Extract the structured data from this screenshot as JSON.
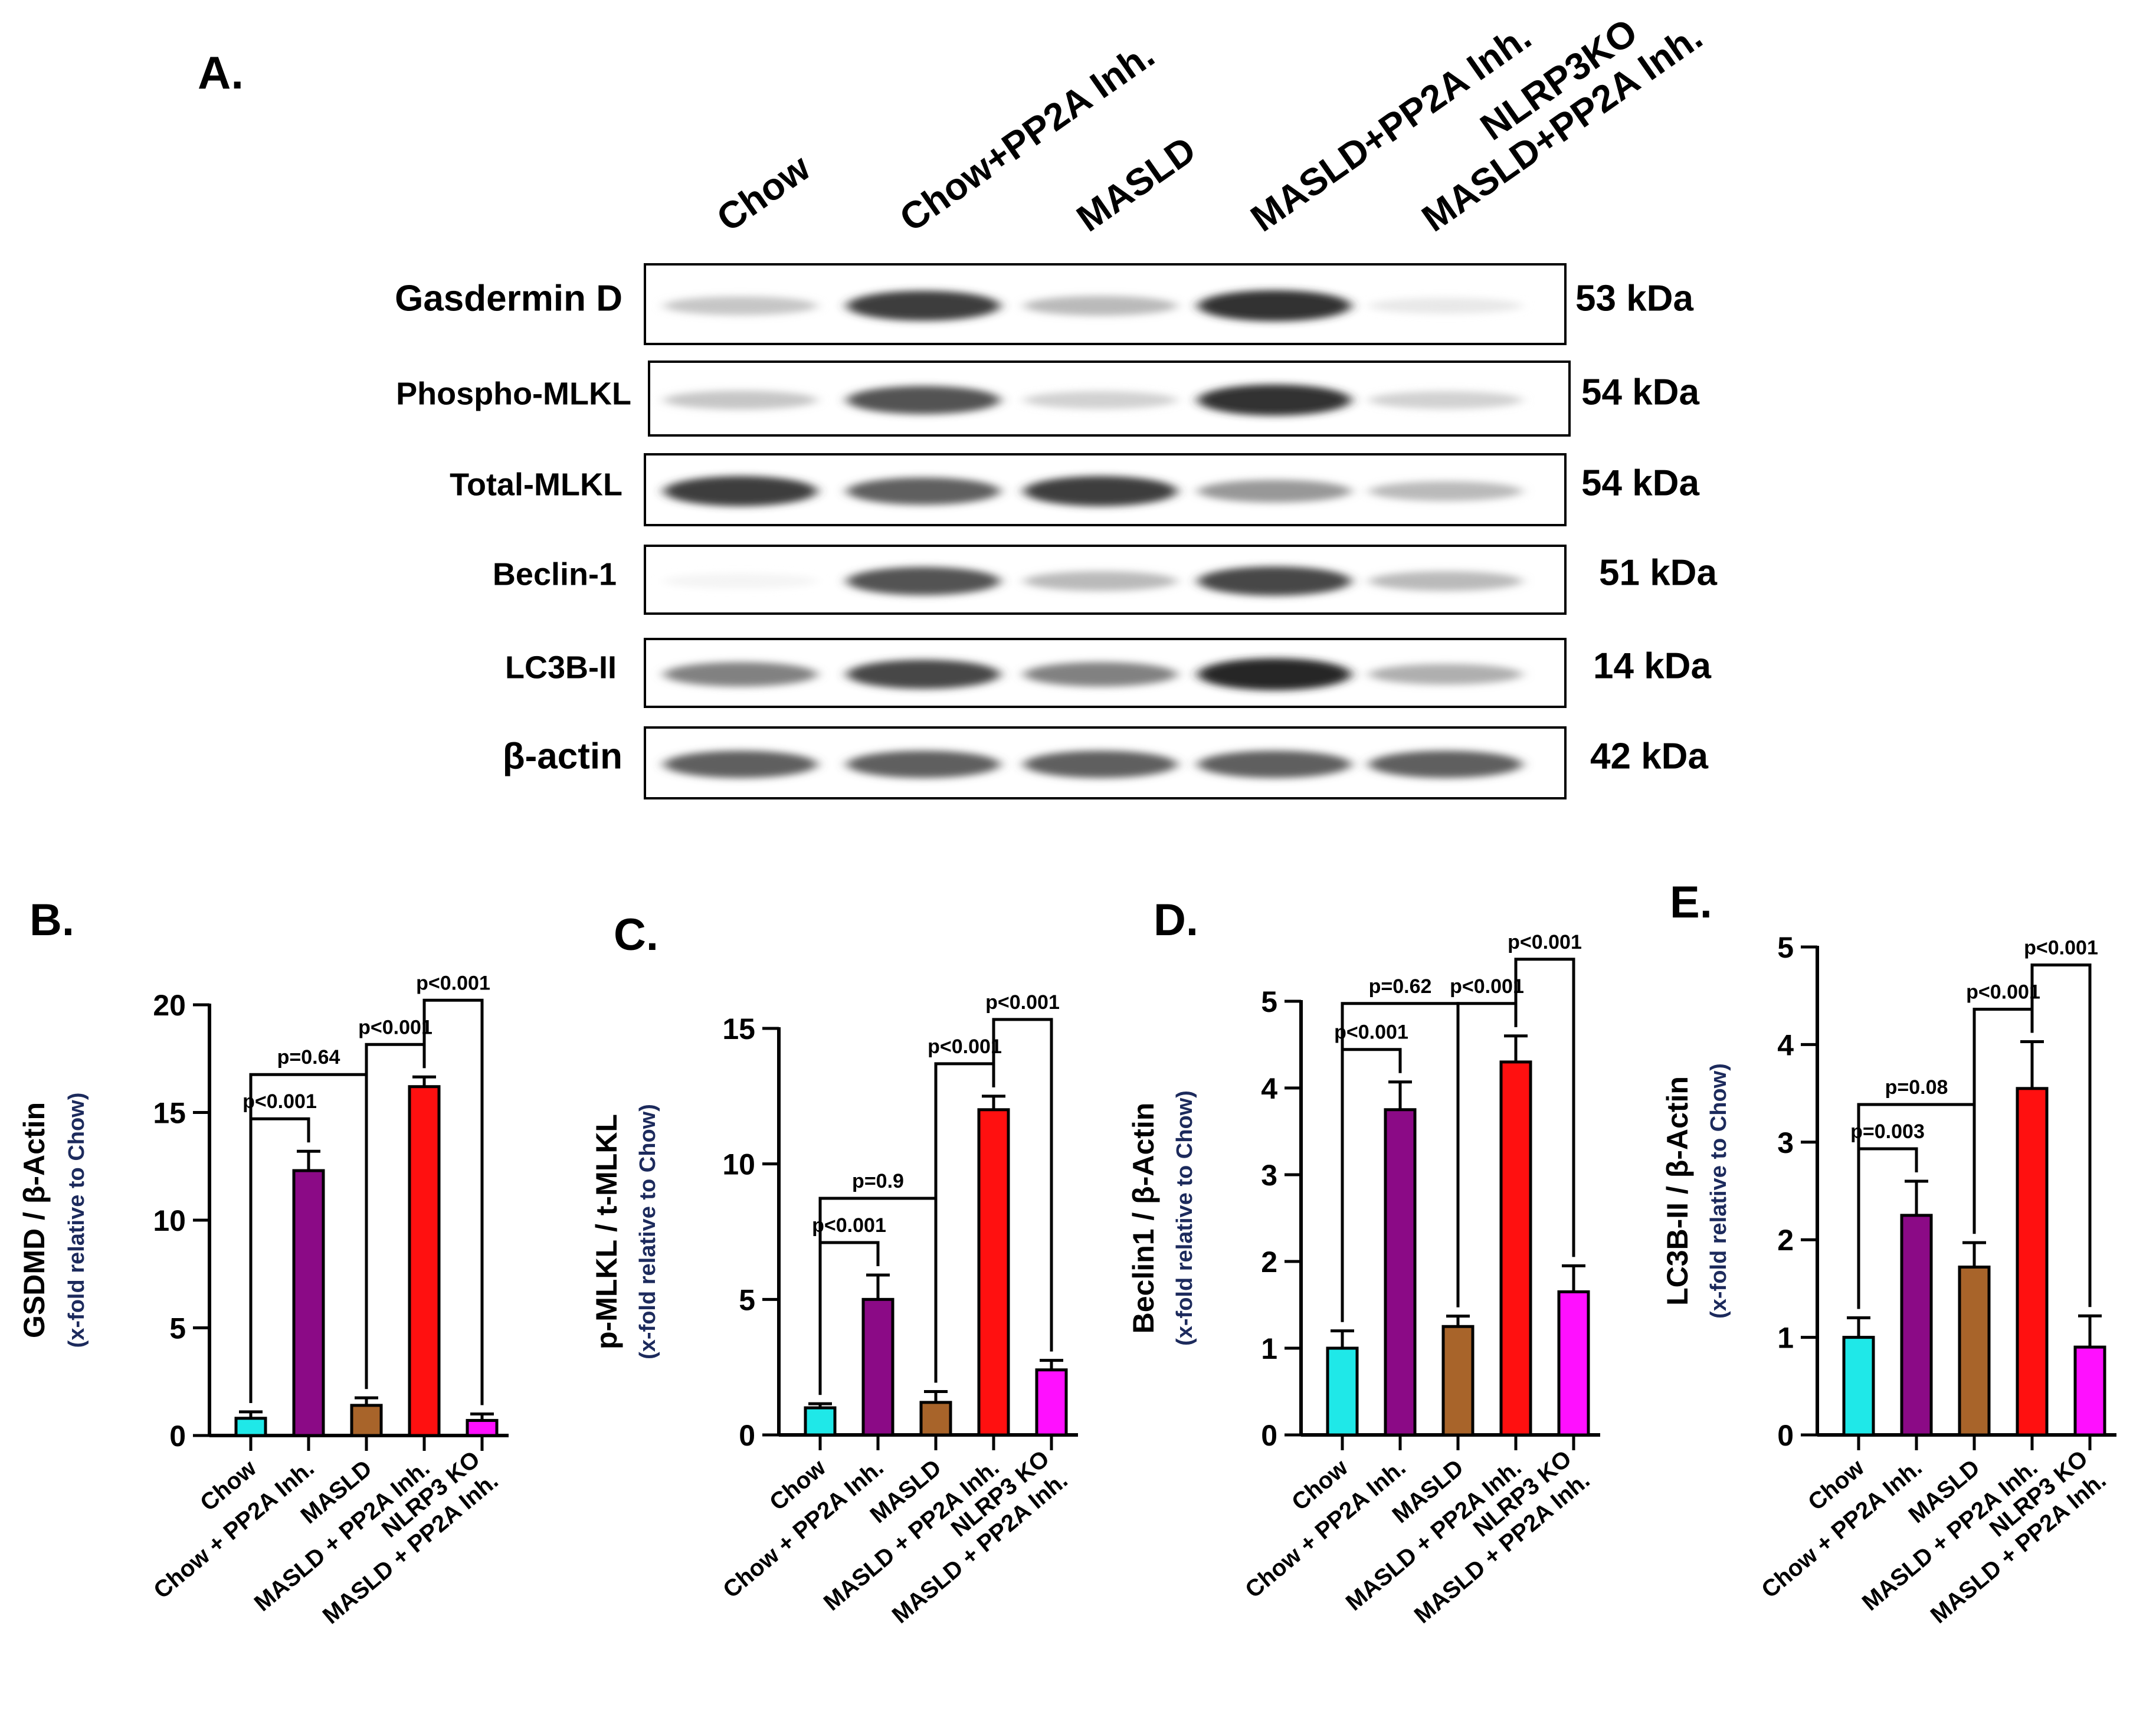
{
  "panel_a": {
    "label": "A.",
    "lanes": [
      {
        "lines": [
          "Chow"
        ]
      },
      {
        "lines": [
          "Chow+PP2A Inh."
        ]
      },
      {
        "lines": [
          "MASLD"
        ]
      },
      {
        "lines": [
          "MASLD+PP2A Inh."
        ]
      },
      {
        "lines": [
          "NLRP3KO",
          "MASLD+PP2A Inh."
        ]
      }
    ],
    "blots": [
      {
        "protein": "Gasdermin D",
        "weight": "53 kDa",
        "intensity": [
          0.25,
          0.85,
          0.3,
          0.9,
          0.1
        ]
      },
      {
        "protein": "Phospho-MLKL",
        "weight": "54 kDa",
        "intensity": [
          0.25,
          0.75,
          0.2,
          0.9,
          0.2
        ]
      },
      {
        "protein": "Total-MLKL",
        "weight": "54 kDa",
        "intensity": [
          0.85,
          0.7,
          0.85,
          0.45,
          0.3
        ]
      },
      {
        "protein": "Beclin-1",
        "weight": "51 kDa",
        "intensity": [
          0.05,
          0.75,
          0.3,
          0.8,
          0.3
        ]
      },
      {
        "protein": "LC3B-II",
        "weight": "14 kDa",
        "intensity": [
          0.55,
          0.8,
          0.55,
          0.95,
          0.35
        ]
      },
      {
        "protein": "β-actin",
        "weight": "42 kDa",
        "intensity": [
          0.7,
          0.7,
          0.7,
          0.7,
          0.7
        ]
      }
    ]
  },
  "colors": {
    "Chow": "#1fe8e8",
    "Chow + PP2A Inh.": "#8b0a86",
    "MASLD": "#a8642a",
    "MASLD + PP2A Inh.": "#ff1010",
    "NLRP3 KO MASLD + PP2A Inh.": "#ff10ff"
  },
  "chart_data": [
    {
      "panel": "B.",
      "type": "bar",
      "ylabel": "GSDMD / β-Actin",
      "ylabel_sub": "(x-fold relative to Chow)",
      "categories": [
        "Chow",
        "Chow + PP2A Inh.",
        "MASLD",
        "MASLD + PP2A Inh.",
        "NLRP3 KO MASLD + PP2A Inh."
      ],
      "values": [
        0.8,
        12.3,
        1.4,
        16.2,
        0.7
      ],
      "errors": [
        0.3,
        0.9,
        0.35,
        0.45,
        0.3
      ],
      "ylim": [
        0,
        20
      ],
      "yticks": [
        0,
        5,
        10,
        15,
        20
      ],
      "comparisons": [
        {
          "from": 0,
          "to": 1,
          "label": "p<0.001"
        },
        {
          "from": 0,
          "to": 2,
          "label": "p=0.64"
        },
        {
          "from": 2,
          "to": 3,
          "label": "p<0.001"
        },
        {
          "from": 3,
          "to": 4,
          "label": "p<0.001"
        }
      ]
    },
    {
      "panel": "C.",
      "type": "bar",
      "ylabel": "p-MLKL / t-MLKL",
      "ylabel_sub": "(x-fold relative to Chow)",
      "categories": [
        "Chow",
        "Chow + PP2A Inh.",
        "MASLD",
        "MASLD + PP2A Inh.",
        "NLRP3 KO MASLD + PP2A Inh."
      ],
      "values": [
        1.0,
        5.0,
        1.2,
        12.0,
        2.4
      ],
      "errors": [
        0.15,
        0.9,
        0.4,
        0.5,
        0.35
      ],
      "ylim": [
        0,
        15
      ],
      "yticks": [
        0,
        5,
        10,
        15
      ],
      "comparisons": [
        {
          "from": 0,
          "to": 1,
          "label": "p<0.001"
        },
        {
          "from": 0,
          "to": 2,
          "label": "p=0.9"
        },
        {
          "from": 2,
          "to": 3,
          "label": "p<0.001"
        },
        {
          "from": 3,
          "to": 4,
          "label": "p<0.001"
        }
      ]
    },
    {
      "panel": "D.",
      "type": "bar",
      "ylabel": "Beclin1 / β-Actin",
      "ylabel_sub": "(x-fold relative to Chow)",
      "categories": [
        "Chow",
        "Chow + PP2A Inh.",
        "MASLD",
        "MASLD + PP2A Inh.",
        "NLRP3 KO MASLD + PP2A Inh."
      ],
      "values": [
        1.0,
        3.75,
        1.25,
        4.3,
        1.65
      ],
      "errors": [
        0.2,
        0.32,
        0.12,
        0.3,
        0.3
      ],
      "ylim": [
        0,
        5
      ],
      "yticks": [
        0,
        1,
        2,
        3,
        4,
        5
      ],
      "comparisons": [
        {
          "from": 0,
          "to": 1,
          "label": "p<0.001"
        },
        {
          "from": 0,
          "to": 2,
          "label": "p=0.62"
        },
        {
          "from": 2,
          "to": 3,
          "label": "p<0.001"
        },
        {
          "from": 3,
          "to": 4,
          "label": "p<0.001"
        }
      ]
    },
    {
      "panel": "E.",
      "type": "bar",
      "ylabel": "LC3B-II / β-Actin",
      "ylabel_sub": "(x-fold relative to Chow)",
      "categories": [
        "Chow",
        "Chow + PP2A Inh.",
        "MASLD",
        "MASLD + PP2A Inh.",
        "NLRP3 KO MASLD + PP2A Inh."
      ],
      "values": [
        1.0,
        2.25,
        1.72,
        3.55,
        0.9
      ],
      "errors": [
        0.2,
        0.35,
        0.25,
        0.48,
        0.32
      ],
      "ylim": [
        0,
        5
      ],
      "yticks": [
        0,
        1,
        2,
        3,
        4,
        5
      ],
      "comparisons": [
        {
          "from": 0,
          "to": 1,
          "label": "p=0.003"
        },
        {
          "from": 0,
          "to": 2,
          "label": "p=0.08"
        },
        {
          "from": 2,
          "to": 3,
          "label": "p<0.001"
        },
        {
          "from": 3,
          "to": 4,
          "label": "p<0.001"
        }
      ]
    }
  ]
}
